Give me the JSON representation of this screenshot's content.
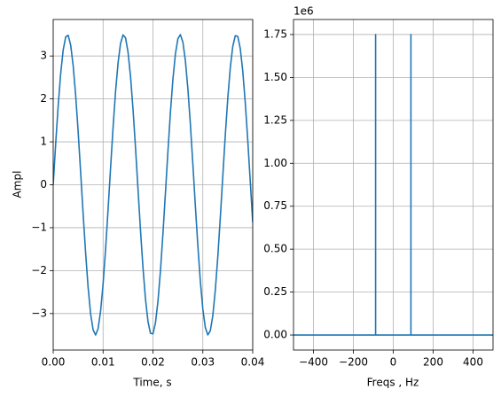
{
  "chart_data": [
    {
      "type": "line",
      "xlabel": "Time, s",
      "ylabel": "Ampl",
      "x": [
        0,
        0.0005,
        0.001,
        0.0015,
        0.002,
        0.0025,
        0.003,
        0.0035,
        0.004,
        0.0045,
        0.005,
        0.0055,
        0.006,
        0.0065,
        0.007,
        0.0075,
        0.008,
        0.0085,
        0.009,
        0.0095,
        0.01,
        0.0105,
        0.011,
        0.0115,
        0.012,
        0.0125,
        0.013,
        0.0135,
        0.014,
        0.0145,
        0.015,
        0.0155,
        0.016,
        0.0165,
        0.017,
        0.0175,
        0.018,
        0.0185,
        0.019,
        0.0195,
        0.02,
        0.0205,
        0.021,
        0.0215,
        0.022,
        0.0225,
        0.023,
        0.0235,
        0.024,
        0.0245,
        0.025,
        0.0255,
        0.026,
        0.0265,
        0.027,
        0.0275,
        0.028,
        0.0285,
        0.029,
        0.0295,
        0.03,
        0.0305,
        0.031,
        0.0315,
        0.032,
        0.0325,
        0.033,
        0.0335,
        0.034,
        0.0345,
        0.035,
        0.0355,
        0.036,
        0.0365,
        0.037,
        0.0375,
        0.038,
        0.0385,
        0.039,
        0.0395,
        0.04
      ],
      "series": [
        {
          "color": "#1f77b4",
          "values": [
            0,
            0.961,
            1.848,
            2.592,
            3.138,
            3.443,
            3.483,
            3.256,
            2.778,
            2.09,
            1.24,
            0.292,
            -0.675,
            -1.585,
            -2.393,
            -3.008,
            -3.378,
            -3.5,
            -3.352,
            -2.945,
            -2.314,
            -1.503,
            -0.58,
            0.39,
            1.328,
            2.169,
            2.838,
            3.292,
            3.492,
            3.423,
            3.091,
            2.526,
            1.761,
            0.867,
            -0.099,
            -1.06,
            -1.931,
            -2.659,
            -3.184,
            -3.459,
            -3.472,
            -3.22,
            -2.717,
            -2.009,
            -1.145,
            -0.193,
            0.774,
            1.681,
            2.458,
            3.047,
            3.403,
            3.497,
            3.322,
            2.892,
            2.238,
            1.412,
            0.48,
            -0.49,
            -1.42,
            -2.246,
            -2.898,
            -3.327,
            -3.498,
            -3.4,
            -3.046,
            -2.454,
            -1.675,
            -0.768,
            0.199,
            1.151,
            2.014,
            2.722,
            3.222,
            3.473,
            3.458,
            3.177,
            2.654,
            1.923,
            1.05,
            0.093,
            -0.873
          ]
        }
      ],
      "xlim": [
        0,
        0.04
      ],
      "ylim": [
        -3.85,
        3.85
      ],
      "xticks": [
        {
          "value": 0,
          "label": "0.00"
        },
        {
          "value": 0.01,
          "label": "0.01"
        },
        {
          "value": 0.02,
          "label": "0.02"
        },
        {
          "value": 0.03,
          "label": "0.03"
        },
        {
          "value": 0.04,
          "label": "0.04"
        }
      ],
      "yticks": [
        {
          "value": -3,
          "label": "−3"
        },
        {
          "value": -2,
          "label": "−2"
        },
        {
          "value": -1,
          "label": "−1"
        },
        0,
        1,
        2,
        3
      ],
      "grid": true
    },
    {
      "type": "line",
      "xlabel": "Freqs , Hz",
      "offset_text": "1e6",
      "x": [
        -500,
        -88.5,
        -88.5,
        -88.5,
        88.5,
        88.5,
        88.5,
        500
      ],
      "series": [
        {
          "color": "#1f77b4",
          "values": [
            0,
            0,
            1750000,
            0,
            0,
            1750000,
            0,
            0
          ]
        }
      ],
      "xlim": [
        -500,
        500
      ],
      "ylim": [
        -87500,
        1837500
      ],
      "xticks": [
        {
          "value": -400,
          "label": "−400"
        },
        {
          "value": -200,
          "label": "−200"
        },
        0,
        200,
        400
      ],
      "yticks": [
        {
          "value": 0,
          "label": "0.00"
        },
        {
          "value": 250000,
          "label": "0.25"
        },
        {
          "value": 500000,
          "label": "0.50"
        },
        {
          "value": 750000,
          "label": "0.75"
        },
        {
          "value": 1000000,
          "label": "1.00"
        },
        {
          "value": 1250000,
          "label": "1.25"
        },
        {
          "value": 1500000,
          "label": "1.50"
        },
        {
          "value": 1750000,
          "label": "1.75"
        }
      ],
      "grid": true
    }
  ]
}
